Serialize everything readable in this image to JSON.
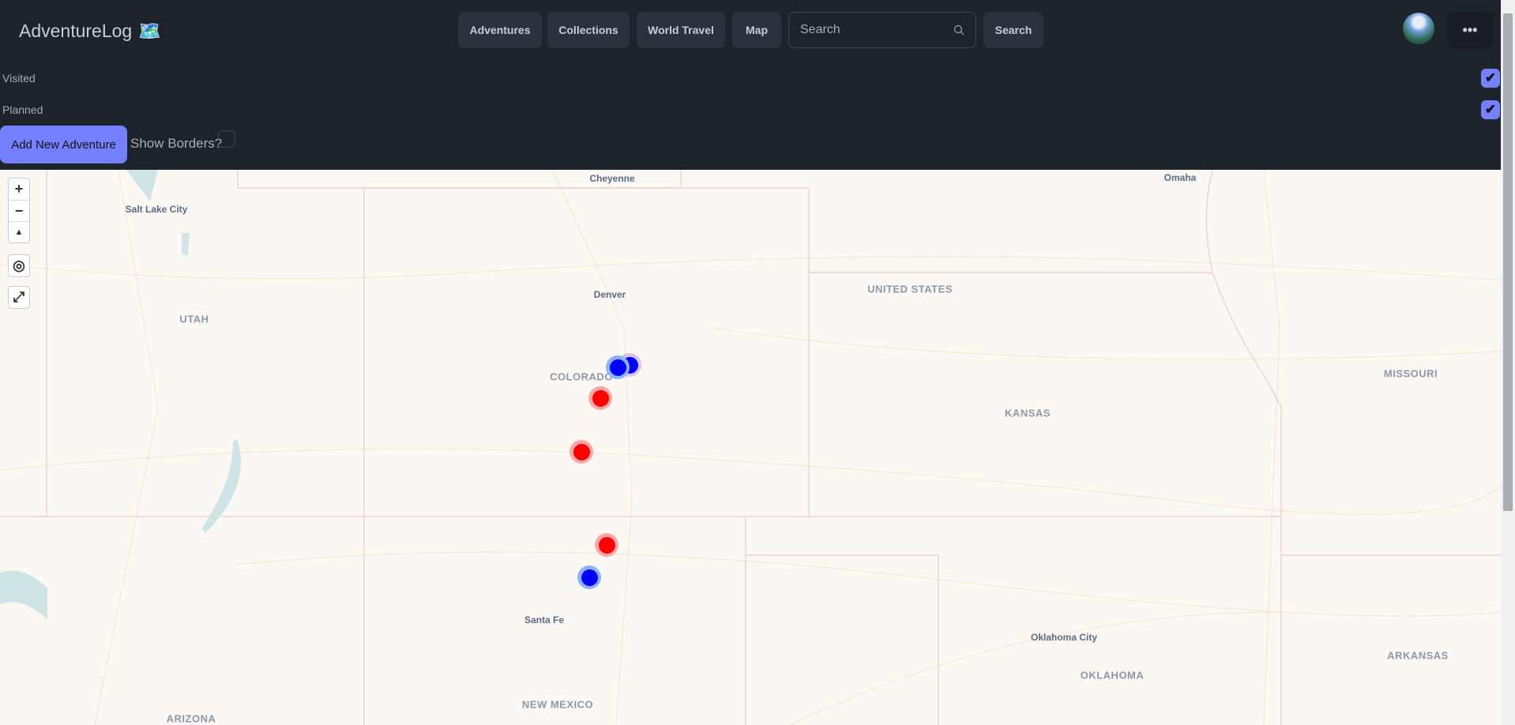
{
  "header": {
    "logo": "AdventureLog",
    "logo_icon": "🗺️",
    "nav": [
      "Adventures",
      "Collections",
      "World Travel",
      "Map"
    ],
    "search_placeholder": "Search",
    "search_button": "Search",
    "menu_label": "•••"
  },
  "filters": {
    "visited": "Visited",
    "planned": "Planned",
    "visited_checked": true,
    "planned_checked": true,
    "add_button": "Add New Adventure",
    "show_borders": "Show Borders?",
    "show_borders_checked": false
  },
  "colors": {
    "accent": "#7480ff",
    "visited_marker": "#0000ff",
    "planned_marker": "#ff0000"
  },
  "map": {
    "controls": {
      "zoom_in": "+",
      "zoom_out": "−",
      "compass": "▲",
      "locate": "◎",
      "fullscreen": "⤢"
    },
    "cities": [
      "Cheyenne",
      "Salt Lake City",
      "Denver",
      "Santa Fe",
      "Oklahoma City",
      "Omaha"
    ],
    "states": [
      "UTAH",
      "COLORADO",
      "UNITED STATES",
      "KANSAS",
      "MISSOURI",
      "OKLAHOMA",
      "ARKANSAS",
      "NEW MEXICO",
      "ARIZONA"
    ],
    "markers": [
      {
        "type": "visited"
      },
      {
        "type": "visited"
      },
      {
        "type": "planned"
      },
      {
        "type": "planned"
      },
      {
        "type": "planned"
      },
      {
        "type": "visited"
      }
    ]
  }
}
